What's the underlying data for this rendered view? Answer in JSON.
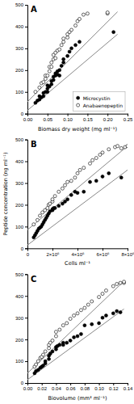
{
  "chart_data": [
    {
      "type": "scatter",
      "title": "A",
      "xlabel": "Biomass dry weight (mg ml⁻¹)",
      "xlim": [
        0,
        0.25
      ],
      "xticks": [
        {
          "value": 0,
          "label": "0.00"
        },
        0.05,
        {
          "value": 0.1,
          "label": "0.10"
        },
        0.15,
        {
          "value": 0.2,
          "label": "0.20"
        },
        0.25
      ],
      "ylim": [
        0,
        500
      ],
      "yticks": [
        0,
        100,
        200,
        300,
        400,
        500
      ],
      "legend": "lower-right",
      "series": [
        {
          "name": "Microcystin",
          "type": "scatter",
          "marker": "circle",
          "color": "#000000",
          "x": [
            0.02,
            0.025,
            0.03,
            0.03,
            0.035,
            0.04,
            0.04,
            0.045,
            0.05,
            0.05,
            0.05,
            0.055,
            0.06,
            0.06,
            0.065,
            0.065,
            0.07,
            0.07,
            0.075,
            0.075,
            0.08,
            0.08,
            0.085,
            0.09,
            0.09,
            0.1,
            0.105,
            0.11,
            0.12,
            0.13,
            0.215
          ],
          "values": [
            50,
            60,
            65,
            80,
            75,
            80,
            95,
            100,
            100,
            115,
            130,
            125,
            135,
            150,
            155,
            170,
            175,
            185,
            180,
            195,
            200,
            175,
            220,
            235,
            250,
            265,
            285,
            300,
            315,
            330,
            375
          ]
        },
        {
          "name": "Anabaenopeptin",
          "type": "scatter",
          "marker": "circle",
          "color": "#ffffff",
          "x": [
            0.02,
            0.03,
            0.035,
            0.04,
            0.045,
            0.045,
            0.05,
            0.055,
            0.055,
            0.06,
            0.06,
            0.065,
            0.065,
            0.07,
            0.07,
            0.075,
            0.08,
            0.085,
            0.09,
            0.09,
            0.1,
            0.1,
            0.105,
            0.11,
            0.12,
            0.125,
            0.13,
            0.14,
            0.15,
            0.2,
            0.2
          ],
          "values": [
            100,
            120,
            140,
            145,
            160,
            175,
            175,
            195,
            215,
            215,
            235,
            250,
            270,
            255,
            280,
            290,
            295,
            315,
            330,
            345,
            350,
            365,
            375,
            385,
            405,
            425,
            435,
            455,
            460,
            460,
            465
          ]
        },
        {
          "type": "line",
          "color": "#888888",
          "x": [
            0.0,
            0.225
          ],
          "values": [
            15,
            365
          ]
        },
        {
          "type": "line",
          "color": "#888888",
          "x": [
            0.0,
            0.225
          ],
          "values": [
            55,
            468
          ]
        }
      ]
    },
    {
      "type": "scatter",
      "title": "B",
      "xlabel": "Cells ml⁻¹",
      "ylabel": "Peptide concentration (ng ml⁻¹)",
      "xlim": [
        0,
        8000000.0
      ],
      "xticks": [
        0,
        {
          "value": 2000000.0,
          "label": "2×10⁶"
        },
        {
          "value": 4000000.0,
          "label": "4×10⁶"
        },
        {
          "value": 6000000.0,
          "label": "6×10⁶"
        },
        {
          "value": 8000000.0,
          "label": "8×10⁶"
        }
      ],
      "ylim": [
        0,
        500
      ],
      "yticks": [
        0,
        100,
        200,
        300,
        400,
        500
      ],
      "series": [
        {
          "type": "scatter",
          "marker": "circle",
          "color": "#000000",
          "x": [
            500000.0,
            600000.0,
            700000.0,
            800000.0,
            900000.0,
            1000000.0,
            1100000.0,
            1200000.0,
            1300000.0,
            1400000.0,
            1500000.0,
            1600000.0,
            1700000.0,
            1800000.0,
            2000000.0,
            2000000.0,
            2100000.0,
            2200000.0,
            2500000.0,
            2800000.0,
            3000000.0,
            3200000.0,
            3500000.0,
            3800000.0,
            4000000.0,
            4500000.0,
            5000000.0,
            5500000.0,
            6000000.0,
            6500000.0,
            7500000.0
          ],
          "values": [
            50,
            60,
            70,
            80,
            90,
            95,
            100,
            110,
            120,
            130,
            140,
            150,
            160,
            170,
            175,
            180,
            185,
            185,
            195,
            205,
            215,
            225,
            245,
            260,
            255,
            260,
            305,
            310,
            330,
            345,
            325
          ]
        },
        {
          "type": "scatter",
          "marker": "circle",
          "color": "#ffffff",
          "x": [
            500000.0,
            800000.0,
            1000000.0,
            1200000.0,
            1400000.0,
            1600000.0,
            1700000.0,
            1800000.0,
            2000000.0,
            2000000.0,
            2200000.0,
            2500000.0,
            2800000.0,
            3000000.0,
            3200000.0,
            3500000.0,
            3800000.0,
            4000000.0,
            4200000.0,
            4500000.0,
            5000000.0,
            5200000.0,
            5500000.0,
            5800000.0,
            6000000.0,
            6500000.0,
            7000000.0,
            7200000.0,
            7500000.0,
            7800000.0,
            8000000.0
          ],
          "values": [
            110,
            130,
            150,
            165,
            175,
            185,
            200,
            205,
            215,
            225,
            240,
            260,
            275,
            290,
            305,
            310,
            325,
            345,
            360,
            370,
            390,
            405,
            415,
            430,
            440,
            455,
            465,
            470,
            460,
            465,
            470
          ]
        },
        {
          "type": "line",
          "color": "#888888",
          "x": [
            0,
            8000000.0
          ],
          "values": [
            15,
            360
          ]
        },
        {
          "type": "line",
          "color": "#888888",
          "x": [
            0,
            8000000.0
          ],
          "values": [
            85,
            470
          ]
        }
      ]
    },
    {
      "type": "scatter",
      "title": "C",
      "xlabel": "Biovolume (mm³ ml⁻¹)",
      "xlim": [
        0,
        0.14
      ],
      "xticks": [
        {
          "value": 0,
          "label": "0.00"
        },
        0.02,
        0.04,
        0.06,
        0.08,
        {
          "value": 0.1,
          "label": "0.10"
        },
        0.12,
        0.14
      ],
      "ylim": [
        0,
        500
      ],
      "yticks": [
        0,
        100,
        200,
        300,
        400,
        500
      ],
      "series": [
        {
          "type": "scatter",
          "marker": "circle",
          "color": "#000000",
          "x": [
            0.01,
            0.012,
            0.015,
            0.018,
            0.02,
            0.022,
            0.025,
            0.025,
            0.03,
            0.03,
            0.032,
            0.035,
            0.04,
            0.04,
            0.042,
            0.045,
            0.05,
            0.05,
            0.055,
            0.06,
            0.065,
            0.07,
            0.075,
            0.08,
            0.09,
            0.1,
            0.105,
            0.11,
            0.12,
            0.125,
            0.13
          ],
          "values": [
            45,
            55,
            60,
            70,
            75,
            80,
            90,
            100,
            110,
            125,
            135,
            145,
            155,
            165,
            170,
            175,
            175,
            185,
            185,
            195,
            210,
            215,
            225,
            265,
            270,
            275,
            300,
            310,
            320,
            330,
            325
          ]
        },
        {
          "type": "scatter",
          "marker": "circle",
          "color": "#ffffff",
          "x": [
            0.01,
            0.012,
            0.015,
            0.018,
            0.02,
            0.022,
            0.025,
            0.03,
            0.03,
            0.032,
            0.035,
            0.04,
            0.04,
            0.045,
            0.05,
            0.055,
            0.06,
            0.065,
            0.07,
            0.075,
            0.08,
            0.085,
            0.09,
            0.1,
            0.105,
            0.11,
            0.12,
            0.125,
            0.13,
            0.135,
            0.135
          ],
          "values": [
            75,
            85,
            100,
            115,
            120,
            130,
            145,
            160,
            175,
            185,
            195,
            215,
            235,
            245,
            265,
            275,
            295,
            310,
            320,
            335,
            345,
            360,
            375,
            395,
            410,
            425,
            445,
            455,
            460,
            460,
            465
          ]
        },
        {
          "type": "line",
          "color": "#888888",
          "x": [
            0,
            0.135
          ],
          "values": [
            15,
            340
          ]
        },
        {
          "type": "line",
          "color": "#888888",
          "x": [
            0,
            0.135
          ],
          "values": [
            45,
            468
          ]
        }
      ]
    }
  ]
}
